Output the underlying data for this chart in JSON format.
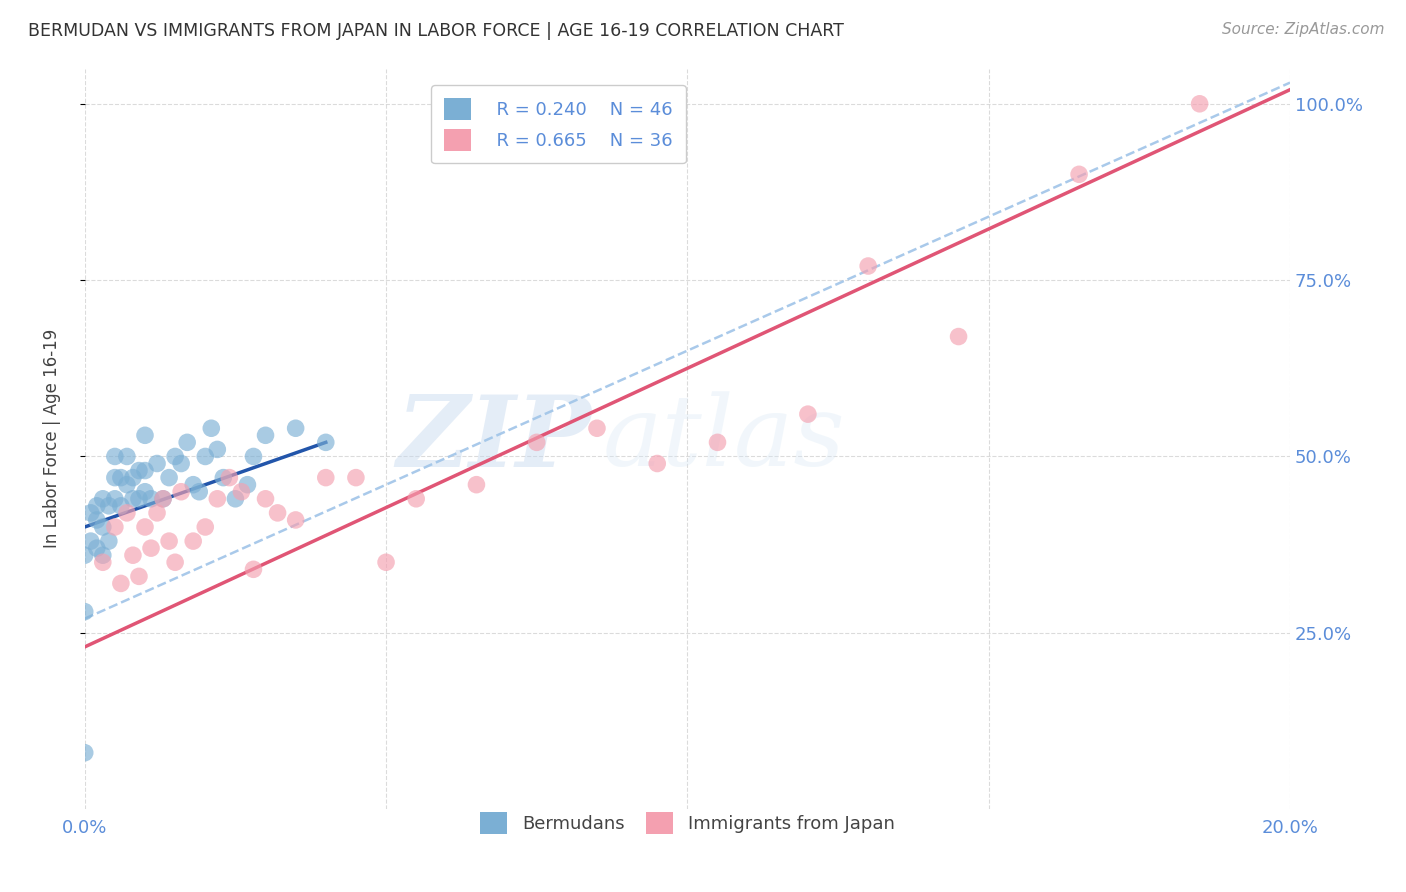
{
  "title": "BERMUDAN VS IMMIGRANTS FROM JAPAN IN LABOR FORCE | AGE 16-19 CORRELATION CHART",
  "source": "Source: ZipAtlas.com",
  "ylabel": "In Labor Force | Age 16-19",
  "xlabel": "",
  "xlim": [
    0.0,
    0.2
  ],
  "ylim": [
    0.0,
    1.05
  ],
  "yticks": [
    0.25,
    0.5,
    0.75,
    1.0
  ],
  "ytick_labels": [
    "25.0%",
    "50.0%",
    "75.0%",
    "100.0%"
  ],
  "xticks": [
    0.0,
    0.05,
    0.1,
    0.15,
    0.2
  ],
  "xtick_labels": [
    "0.0%",
    "",
    "",
    "",
    "20.0%"
  ],
  "bermuda_color": "#7bafd4",
  "japan_color": "#f4a0b0",
  "trendline_bermuda_color": "#2255aa",
  "trendline_japan_color": "#e05575",
  "dashed_color": "#a0c4e8",
  "watermark_text": "ZIPatlas",
  "legend_R_bermuda": "R = 0.240",
  "legend_N_bermuda": "N = 46",
  "legend_R_japan": "R = 0.665",
  "legend_N_japan": "N = 36",
  "bermuda_points_x": [
    0.0,
    0.0,
    0.0,
    0.001,
    0.001,
    0.002,
    0.002,
    0.002,
    0.003,
    0.003,
    0.003,
    0.004,
    0.004,
    0.005,
    0.005,
    0.005,
    0.006,
    0.006,
    0.007,
    0.007,
    0.008,
    0.008,
    0.009,
    0.009,
    0.01,
    0.01,
    0.01,
    0.011,
    0.012,
    0.013,
    0.014,
    0.015,
    0.016,
    0.017,
    0.018,
    0.019,
    0.02,
    0.021,
    0.022,
    0.023,
    0.025,
    0.027,
    0.028,
    0.03,
    0.035,
    0.04
  ],
  "bermuda_points_y": [
    0.08,
    0.28,
    0.36,
    0.38,
    0.42,
    0.37,
    0.41,
    0.43,
    0.36,
    0.4,
    0.44,
    0.38,
    0.43,
    0.44,
    0.47,
    0.5,
    0.43,
    0.47,
    0.46,
    0.5,
    0.44,
    0.47,
    0.44,
    0.48,
    0.45,
    0.48,
    0.53,
    0.44,
    0.49,
    0.44,
    0.47,
    0.5,
    0.49,
    0.52,
    0.46,
    0.45,
    0.5,
    0.54,
    0.51,
    0.47,
    0.44,
    0.46,
    0.5,
    0.53,
    0.54,
    0.52
  ],
  "japan_points_x": [
    0.003,
    0.005,
    0.006,
    0.007,
    0.008,
    0.009,
    0.01,
    0.011,
    0.012,
    0.013,
    0.014,
    0.015,
    0.016,
    0.018,
    0.02,
    0.022,
    0.024,
    0.026,
    0.028,
    0.03,
    0.032,
    0.035,
    0.04,
    0.045,
    0.05,
    0.055,
    0.065,
    0.075,
    0.085,
    0.095,
    0.105,
    0.12,
    0.13,
    0.145,
    0.165,
    0.185
  ],
  "japan_points_y": [
    0.35,
    0.4,
    0.32,
    0.42,
    0.36,
    0.33,
    0.4,
    0.37,
    0.42,
    0.44,
    0.38,
    0.35,
    0.45,
    0.38,
    0.4,
    0.44,
    0.47,
    0.45,
    0.34,
    0.44,
    0.42,
    0.41,
    0.47,
    0.47,
    0.35,
    0.44,
    0.46,
    0.52,
    0.54,
    0.49,
    0.52,
    0.56,
    0.77,
    0.67,
    0.9,
    1.0
  ],
  "bermuda_trend_x": [
    0.0,
    0.04
  ],
  "bermuda_trend_y": [
    0.4,
    0.52
  ],
  "japan_trend_x": [
    0.0,
    0.2
  ],
  "japan_trend_y": [
    0.23,
    1.02
  ],
  "dashed_trend_x": [
    0.0,
    0.2
  ],
  "dashed_trend_y": [
    0.27,
    1.03
  ]
}
